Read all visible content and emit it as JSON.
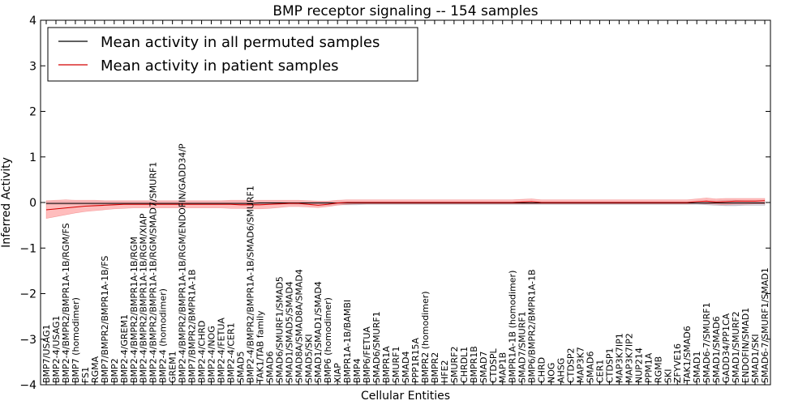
{
  "chart_data": {
    "type": "line",
    "title": "BMP receptor signaling -- 154 samples",
    "xlabel": "Cellular Entities",
    "ylabel": "Inferred Activity",
    "ylim": [
      -4,
      4
    ],
    "yticks": [
      "−4",
      "−3",
      "−2",
      "−1",
      "0",
      "1",
      "2",
      "3",
      "4"
    ],
    "grid": false,
    "legend_position": "top-left",
    "categories": [
      "BMP7/USAG1",
      "BMP2-4/USAG1",
      "BMP2-4/BMPR2/BMPR1A-1B/RGM/FS",
      "BMP7 (homodimer)",
      "FS1",
      "RGMA",
      "BMP7/BMPR2/BMPR1A-1B/FS",
      "BMP2",
      "BMP2-4/GREM1",
      "BMP2-4/BMPR2/BMPR1A-1B/RGM",
      "BMP2-4/BMPR2/BMPR1A-1B/RGM/XIAP",
      "BMP2-4/BMPR2/BMPR1A-1B/RGM/SMAD7/SMURF1",
      "BMP2-4 (homodimer)",
      "GREM1",
      "BMP2-4/BMPR2/BMPR1A-1B/RGM/ENDOFIN/GADD34/P",
      "BMP7/BMPR2/BMPR1A-1B",
      "BMP2-4/CHRD",
      "BMP2-4/NOG",
      "BMP2-4/FETUA",
      "BMP2-4/CER1",
      "SMAD5",
      "BMP2-4/BMPR2/BMPR1A-1B/SMAD6/SMURF1",
      "TAK1/TAB family",
      "SMAD6",
      "SMAD6/SMURF1/SMAD5",
      "SMAD1/SMAD5/SMAD4",
      "SMAD8A/SMAD8A/SMAD4",
      "SMAD5/SKI",
      "SMAD1/SMAD1/SMAD4",
      "BMP6 (homodimer)",
      "XIAP",
      "BMPR1A-1B/BAMBI",
      "BMP4",
      "BMP6/FETUA",
      "SMAD6/SMURF1",
      "BMPR1A",
      "SMURF1",
      "SMAD4",
      "PPP1R15A",
      "BMPR2 (homodimer)",
      "BMPR2",
      "HFE2",
      "SMURF2",
      "CHRDL1",
      "BMPR1B",
      "SMAD7",
      "CTDSPL",
      "MAP1B",
      "BMPR1A-1B (homodimer)",
      "SMAD7/SMURF1",
      "BMP6/BMPR2/BMPR1A-1B",
      "CHRD",
      "NOG",
      "AHSG",
      "CTDSP2",
      "MAP3K7",
      "SMAD6 ",
      "CER1",
      "CTDSP1",
      "MAP3K7IP1",
      "MAP3K7IP2",
      "NUP214",
      "PPM1A",
      "RGMB",
      "SKI",
      "ZFYVE16",
      "TAK1/SMAD6",
      "SMAD1",
      "SMAD6-7/SMURF1",
      "SMAD1/SMAD6",
      "GADD34/PP1CA",
      "SMAD1/SMURF2",
      "ENDOFIN/SMAD1",
      "SMAD1/SKI",
      "SMAD6-7/SMURF1/SMAD1"
    ],
    "series": [
      {
        "name": "Mean activity in all permuted samples",
        "color": "#000000",
        "values": [
          -0.02,
          -0.02,
          -0.02,
          -0.02,
          -0.02,
          -0.02,
          -0.02,
          -0.02,
          -0.02,
          -0.02,
          -0.02,
          -0.02,
          -0.02,
          -0.02,
          -0.02,
          -0.02,
          -0.02,
          -0.02,
          -0.02,
          -0.02,
          -0.02,
          -0.02,
          -0.01,
          -0.01,
          -0.01,
          -0.01,
          -0.01,
          -0.01,
          -0.01,
          -0.01,
          -0.01,
          -0.01,
          -0.01,
          -0.01,
          -0.01,
          -0.01,
          -0.01,
          -0.01,
          -0.01,
          -0.01,
          -0.01,
          -0.01,
          -0.01,
          -0.01,
          -0.01,
          -0.01,
          -0.01,
          -0.01,
          -0.01,
          -0.01,
          -0.01,
          -0.01,
          -0.01,
          -0.01,
          -0.01,
          -0.01,
          -0.01,
          -0.01,
          -0.01,
          -0.01,
          -0.01,
          -0.01,
          -0.01,
          -0.01,
          -0.01,
          -0.01,
          -0.01,
          -0.01,
          -0.01,
          -0.01,
          -0.01,
          -0.01,
          -0.01,
          -0.01,
          -0.01
        ],
        "band_lower": [
          -0.04,
          -0.04,
          -0.04,
          -0.04,
          -0.04,
          -0.04,
          -0.04,
          -0.04,
          -0.04,
          -0.04,
          -0.04,
          -0.04,
          -0.04,
          -0.04,
          -0.04,
          -0.04,
          -0.04,
          -0.04,
          -0.04,
          -0.04,
          -0.04,
          -0.04,
          -0.04,
          -0.04,
          -0.04,
          -0.04,
          -0.05,
          -0.05,
          -0.06,
          -0.06,
          -0.05,
          -0.05,
          -0.05,
          -0.04,
          -0.04,
          -0.04,
          -0.04,
          -0.04,
          -0.04,
          -0.04,
          -0.04,
          -0.04,
          -0.04,
          -0.04,
          -0.04,
          -0.04,
          -0.04,
          -0.04,
          -0.04,
          -0.04,
          -0.04,
          -0.04,
          -0.04,
          -0.04,
          -0.04,
          -0.04,
          -0.04,
          -0.04,
          -0.04,
          -0.04,
          -0.04,
          -0.04,
          -0.04,
          -0.04,
          -0.04,
          -0.04,
          -0.04,
          -0.04,
          -0.05,
          -0.06,
          -0.07,
          -0.07,
          -0.06,
          -0.06,
          -0.06
        ],
        "band_upper": [
          0.02,
          0.02,
          0.02,
          0.02,
          0.02,
          0.02,
          0.02,
          0.02,
          0.02,
          0.02,
          0.02,
          0.02,
          0.02,
          0.02,
          0.02,
          0.02,
          0.02,
          0.02,
          0.02,
          0.02,
          0.02,
          0.02,
          0.02,
          0.02,
          0.02,
          0.02,
          0.02,
          0.02,
          0.02,
          0.02,
          0.02,
          0.02,
          0.02,
          0.02,
          0.02,
          0.02,
          0.02,
          0.02,
          0.02,
          0.02,
          0.02,
          0.02,
          0.02,
          0.02,
          0.02,
          0.02,
          0.02,
          0.02,
          0.02,
          0.02,
          0.02,
          0.02,
          0.02,
          0.02,
          0.02,
          0.02,
          0.02,
          0.02,
          0.02,
          0.02,
          0.02,
          0.02,
          0.02,
          0.02,
          0.02,
          0.02,
          0.02,
          0.02,
          0.03,
          0.04,
          0.05,
          0.05,
          0.04,
          0.04,
          0.04
        ],
        "band_color": "#bfbfd6"
      },
      {
        "name": "Mean activity in patient samples",
        "color": "#d40000",
        "values": [
          -0.16,
          -0.14,
          -0.12,
          -0.1,
          -0.08,
          -0.07,
          -0.06,
          -0.05,
          -0.04,
          -0.04,
          -0.04,
          -0.04,
          -0.04,
          -0.04,
          -0.04,
          -0.04,
          -0.04,
          -0.04,
          -0.04,
          -0.04,
          -0.05,
          -0.05,
          -0.05,
          -0.04,
          -0.03,
          -0.02,
          -0.02,
          -0.04,
          -0.06,
          -0.04,
          -0.01,
          0,
          0,
          0,
          0,
          0,
          0,
          0,
          0,
          0,
          0,
          0,
          0,
          0,
          0,
          0,
          0,
          0,
          0,
          0.01,
          0.02,
          0,
          0,
          0,
          0,
          0,
          0,
          0,
          0,
          0,
          0,
          0,
          0,
          0,
          0,
          0,
          0,
          0.02,
          0.03,
          0.01,
          0.02,
          0.03,
          0.03,
          0.03,
          0.04
        ],
        "band_lower": [
          -0.35,
          -0.31,
          -0.27,
          -0.23,
          -0.2,
          -0.18,
          -0.16,
          -0.14,
          -0.13,
          -0.12,
          -0.12,
          -0.12,
          -0.12,
          -0.12,
          -0.12,
          -0.12,
          -0.12,
          -0.12,
          -0.12,
          -0.13,
          -0.13,
          -0.14,
          -0.14,
          -0.13,
          -0.11,
          -0.09,
          -0.09,
          -0.1,
          -0.11,
          -0.09,
          -0.06,
          -0.04,
          -0.03,
          -0.03,
          -0.03,
          -0.03,
          -0.03,
          -0.03,
          -0.03,
          -0.03,
          -0.03,
          -0.03,
          -0.03,
          -0.03,
          -0.03,
          -0.03,
          -0.03,
          -0.03,
          -0.03,
          -0.03,
          -0.03,
          -0.03,
          -0.03,
          -0.03,
          -0.03,
          -0.03,
          -0.03,
          -0.03,
          -0.03,
          -0.03,
          -0.03,
          -0.03,
          -0.03,
          -0.03,
          -0.03,
          -0.03,
          -0.03,
          -0.02,
          -0.03,
          -0.04,
          -0.05,
          -0.04,
          -0.04,
          -0.03,
          -0.03
        ],
        "band_upper": [
          0.04,
          0.05,
          0.06,
          0.05,
          0.05,
          0.05,
          0.04,
          0.04,
          0.04,
          0.04,
          0.04,
          0.04,
          0.04,
          0.04,
          0.04,
          0.04,
          0.04,
          0.04,
          0.04,
          0.05,
          0.05,
          0.05,
          0.05,
          0.05,
          0.05,
          0.05,
          0.05,
          0.04,
          0.03,
          0.03,
          0.05,
          0.06,
          0.06,
          0.06,
          0.06,
          0.06,
          0.06,
          0.06,
          0.06,
          0.06,
          0.06,
          0.06,
          0.06,
          0.06,
          0.06,
          0.06,
          0.06,
          0.06,
          0.06,
          0.07,
          0.08,
          0.06,
          0.06,
          0.06,
          0.06,
          0.06,
          0.06,
          0.06,
          0.06,
          0.06,
          0.06,
          0.06,
          0.06,
          0.06,
          0.06,
          0.06,
          0.06,
          0.08,
          0.1,
          0.08,
          0.09,
          0.09,
          0.09,
          0.09,
          0.09
        ],
        "band_color": "#ff9a9a"
      }
    ]
  }
}
